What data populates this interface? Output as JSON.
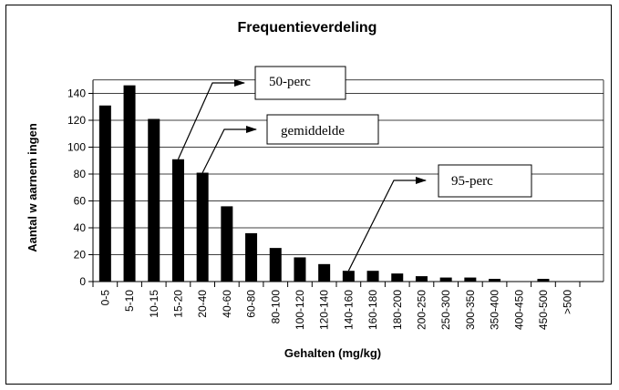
{
  "chart_data": {
    "type": "bar",
    "title": "Frequentieverdeling",
    "xlabel": "Gehalten  (mg/kg)",
    "ylabel": "Aantal  w aarnem ingen",
    "categories": [
      "0-5",
      "5-10",
      "10-15",
      "15-20",
      "20-40",
      "40-60",
      "60-80",
      "80-100",
      "100-120",
      "120-140",
      "140-160",
      "160-180",
      "180-200",
      "200-250",
      "250-300",
      "300-350",
      "350-400",
      "400-450",
      "450-500",
      ">500"
    ],
    "values": [
      131,
      146,
      121,
      91,
      81,
      56,
      36,
      25,
      18,
      13,
      8,
      8,
      6,
      4,
      3,
      3,
      2,
      0,
      2,
      0
    ],
    "ylim": [
      0,
      150
    ],
    "yticks": [
      0,
      20,
      40,
      60,
      80,
      100,
      120,
      140
    ],
    "grid": "horizontal",
    "legend": "none",
    "bar_color": "#000000",
    "annotations": [
      {
        "label": "50-perc",
        "points_to": "15-20"
      },
      {
        "label": "gemiddelde",
        "points_to": "20-40"
      },
      {
        "label": "95-perc",
        "points_to": "140-160"
      }
    ]
  }
}
